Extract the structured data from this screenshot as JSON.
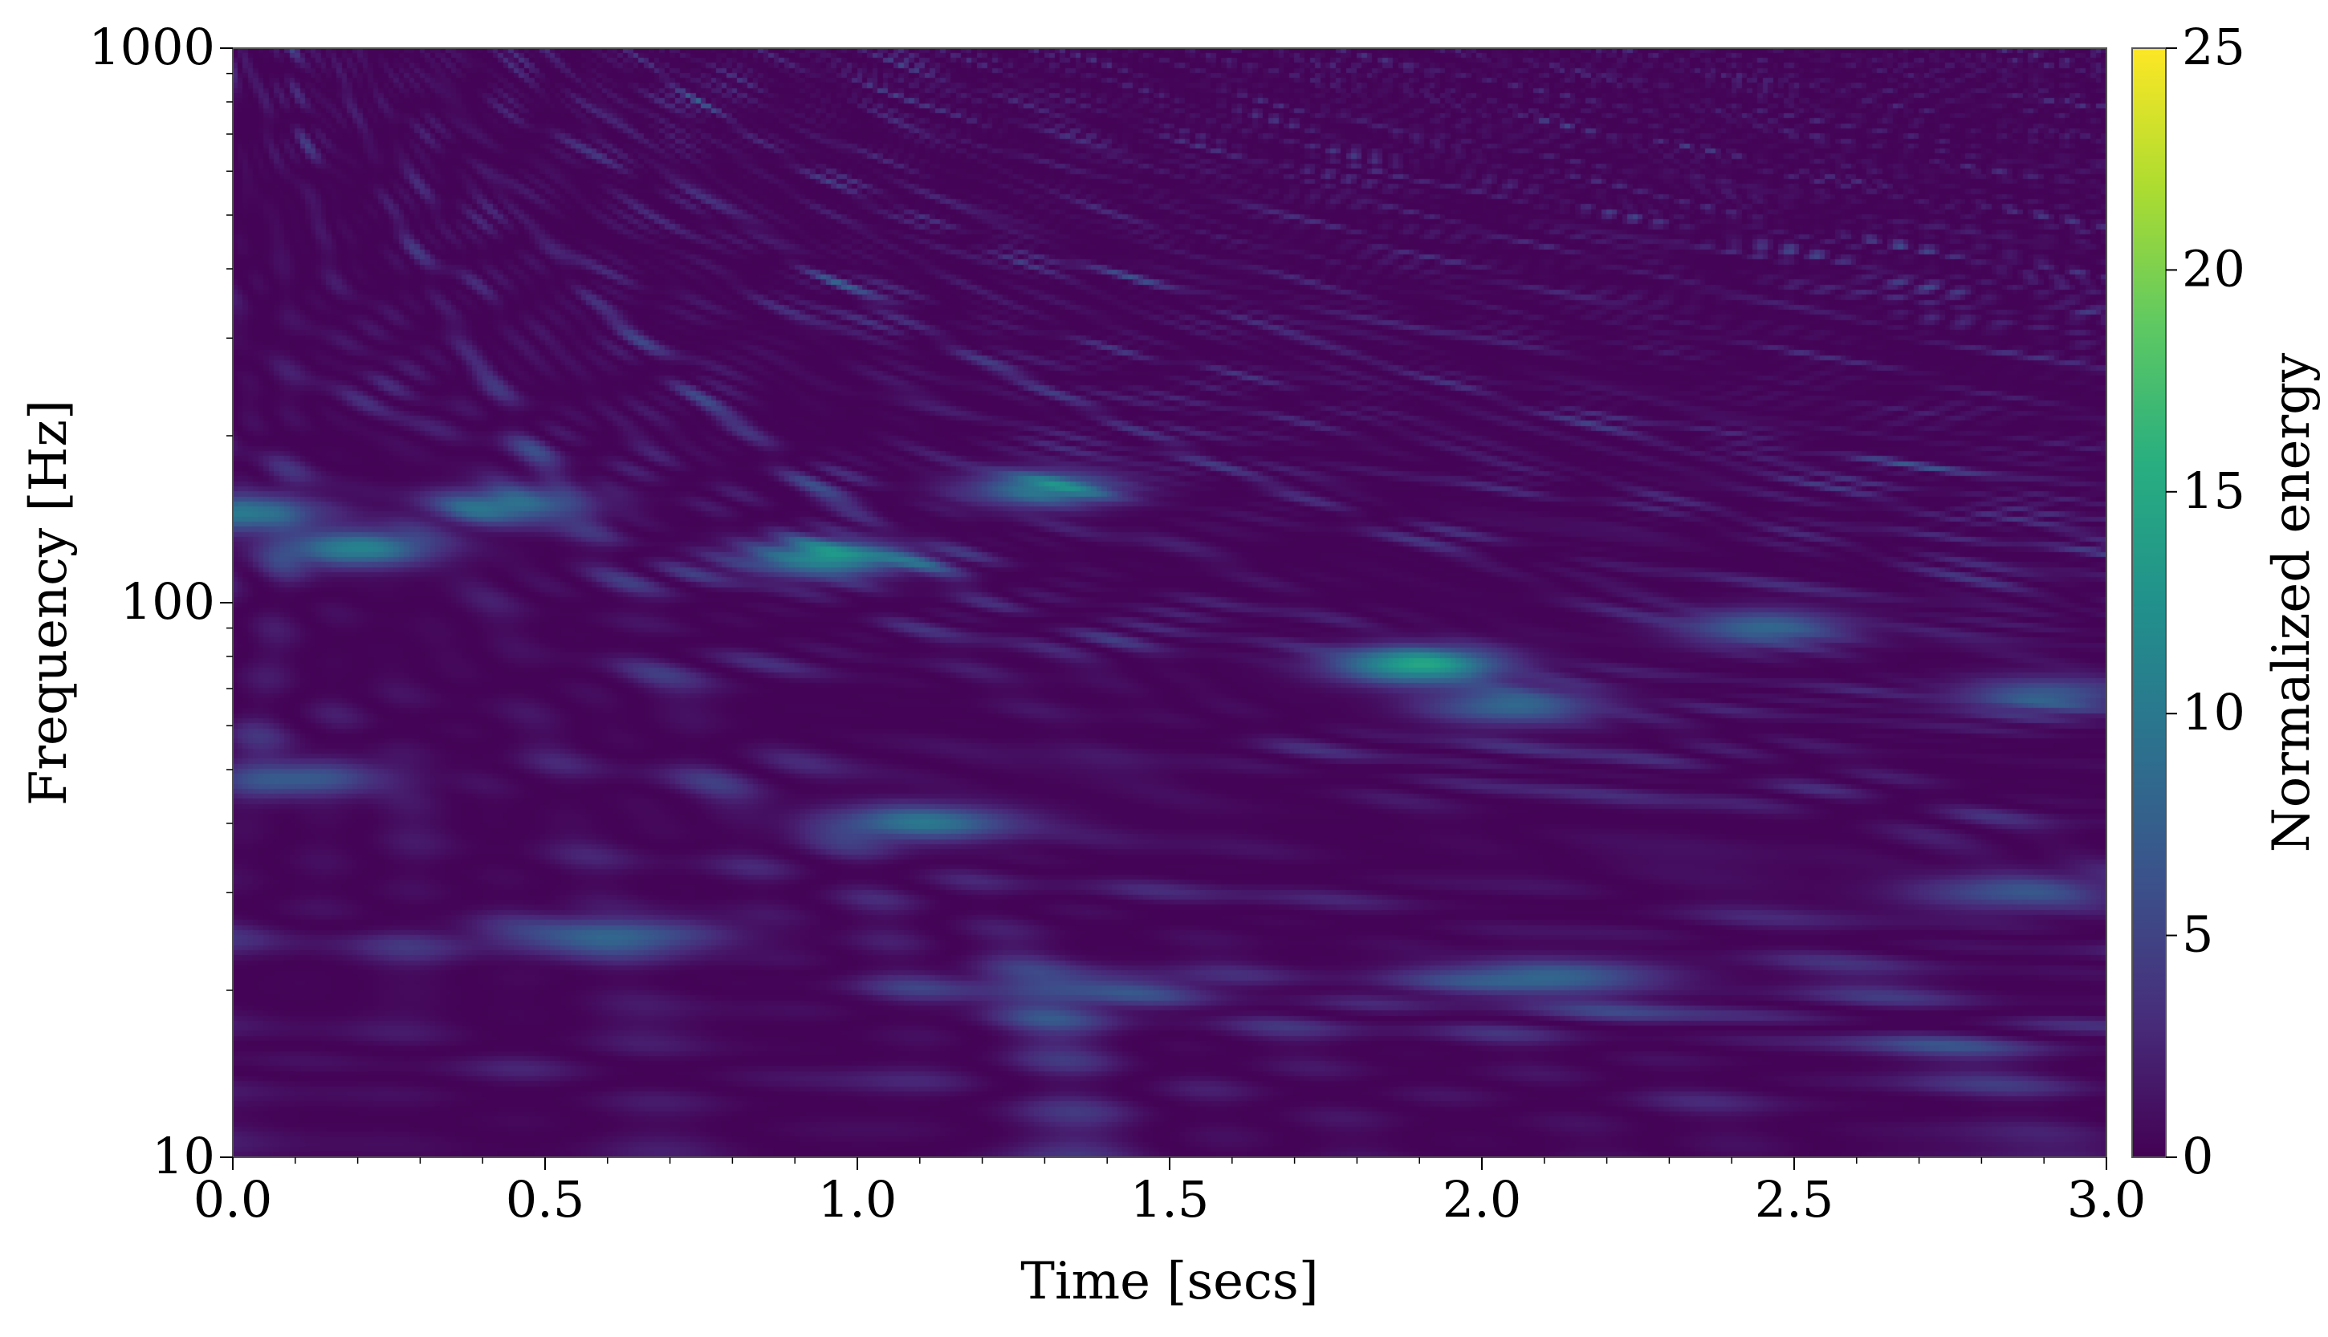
{
  "chart_data": {
    "type": "heatmap",
    "xlabel": "Time [secs]",
    "ylabel": "Frequency [Hz]",
    "colorbar_label": "Normalized energy",
    "colormap": "viridis",
    "xlim": [
      0.0,
      3.0
    ],
    "ylim": [
      10,
      1000
    ],
    "yscale": "log",
    "clim": [
      0,
      25
    ],
    "x_ticks": [
      "0.0",
      "0.5",
      "1.0",
      "1.5",
      "2.0",
      "2.5",
      "3.0"
    ],
    "x_tick_values": [
      0.0,
      0.5,
      1.0,
      1.5,
      2.0,
      2.5,
      3.0
    ],
    "y_ticks": [
      "10",
      "100",
      "1000"
    ],
    "y_tick_values": [
      10,
      100,
      1000
    ],
    "colorbar_ticks": [
      "0",
      "5",
      "10",
      "15",
      "20",
      "25"
    ],
    "colorbar_tick_values": [
      0,
      5,
      10,
      15,
      20,
      25
    ],
    "grid": false,
    "background_level": 1.0,
    "notable_features": [
      {
        "time": 1.9,
        "frequency": 77,
        "energy": 14
      },
      {
        "time": 0.95,
        "frequency": 120,
        "energy": 12
      },
      {
        "time": 0.2,
        "frequency": 125,
        "energy": 11
      },
      {
        "time": 0.02,
        "frequency": 145,
        "energy": 10
      },
      {
        "time": 1.3,
        "frequency": 160,
        "energy": 10
      },
      {
        "time": 0.45,
        "frequency": 150,
        "energy": 9
      },
      {
        "time": 1.1,
        "frequency": 40,
        "energy": 9
      },
      {
        "time": 0.6,
        "frequency": 25,
        "energy": 8
      },
      {
        "time": 2.1,
        "frequency": 21,
        "energy": 8
      },
      {
        "time": 2.05,
        "frequency": 65,
        "energy": 8
      },
      {
        "time": 2.45,
        "frequency": 90,
        "energy": 8
      },
      {
        "time": 0.1,
        "frequency": 48,
        "energy": 7
      },
      {
        "time": 2.85,
        "frequency": 30,
        "energy": 6
      },
      {
        "time": 2.9,
        "frequency": 68,
        "energy": 7
      },
      {
        "time": 1.35,
        "frequency": 20,
        "energy": 6
      }
    ]
  }
}
